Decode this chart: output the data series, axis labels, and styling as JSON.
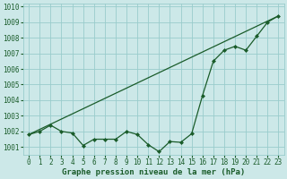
{
  "xlabel": "Graphe pression niveau de la mer (hPa)",
  "ylabel": "",
  "background_color": "#cce8e8",
  "grid_color": "#99cccc",
  "line_color": "#1a5c2a",
  "ylim": [
    1000.5,
    1010.2
  ],
  "xlim": [
    -0.5,
    23.5
  ],
  "yticks": [
    1001,
    1002,
    1003,
    1004,
    1005,
    1006,
    1007,
    1008,
    1009,
    1010
  ],
  "xticks": [
    0,
    1,
    2,
    3,
    4,
    5,
    6,
    7,
    8,
    9,
    10,
    11,
    12,
    13,
    14,
    15,
    16,
    17,
    18,
    19,
    20,
    21,
    22,
    23
  ],
  "data_x": [
    0,
    1,
    2,
    3,
    4,
    5,
    6,
    7,
    8,
    9,
    10,
    11,
    12,
    13,
    14,
    15,
    16,
    17,
    18,
    19,
    20,
    21,
    22,
    23
  ],
  "data_y": [
    1001.8,
    1002.0,
    1002.4,
    1002.0,
    1001.9,
    1001.1,
    1001.5,
    1001.5,
    1001.5,
    1002.0,
    1001.8,
    1001.15,
    1000.7,
    1001.35,
    1001.3,
    1001.85,
    1004.3,
    1006.5,
    1007.2,
    1007.45,
    1007.2,
    1008.1,
    1009.0,
    1009.4
  ],
  "trend_x": [
    0,
    23
  ],
  "trend_y": [
    1001.8,
    1009.4
  ],
  "xlabel_fontsize": 6.5,
  "tick_fontsize": 5.5,
  "label_color": "#1a5c2a"
}
